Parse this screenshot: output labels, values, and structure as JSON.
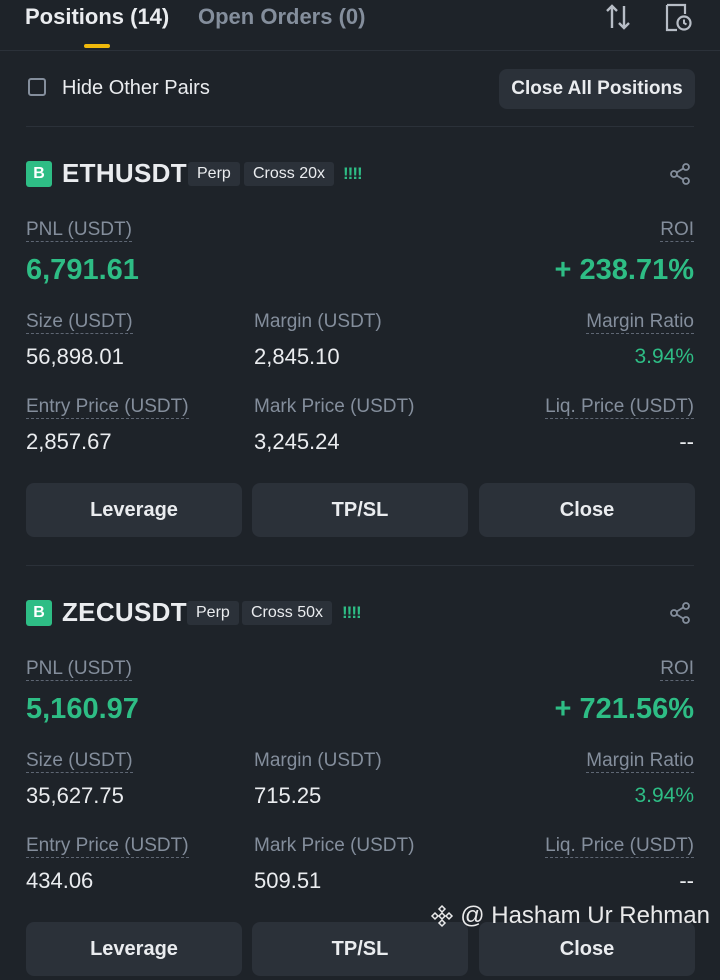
{
  "tabs": [
    {
      "label": "Positions (14)",
      "active": true
    },
    {
      "label": "Open Orders (0)",
      "active": false
    }
  ],
  "toolbar_icons": [
    "sort-icon",
    "history-icon"
  ],
  "filter": {
    "hide_other_pairs_label": "Hide Other Pairs",
    "hide_other_pairs_checked": false,
    "close_all_label": "Close All Positions"
  },
  "positions": [
    {
      "badge": "B",
      "symbol": "ETHUSDT",
      "type_tag": "Perp",
      "margin_tag": "Cross 20x",
      "signal": "!!!!",
      "pnl_label": "PNL (USDT)",
      "pnl_value": "6,791.61",
      "roi_label": "ROI",
      "roi_value": "+ 238.71%",
      "size_label": "Size (USDT)",
      "size_value": "56,898.01",
      "margin_label": "Margin (USDT)",
      "margin_value": "2,845.10",
      "margin_ratio_label": "Margin Ratio",
      "margin_ratio_value": "3.94%",
      "entry_label": "Entry Price (USDT)",
      "entry_value": "2,857.67",
      "mark_label": "Mark Price (USDT)",
      "mark_value": "3,245.24",
      "liq_label": "Liq. Price (USDT)",
      "liq_value": "--",
      "buttons": [
        "Leverage",
        "TP/SL",
        "Close"
      ]
    },
    {
      "badge": "B",
      "symbol": "ZECUSDT",
      "type_tag": "Perp",
      "margin_tag": "Cross 50x",
      "signal": "!!!!",
      "pnl_label": "PNL (USDT)",
      "pnl_value": "5,160.97",
      "roi_label": "ROI",
      "roi_value": "+ 721.56%",
      "size_label": "Size (USDT)",
      "size_value": "35,627.75",
      "margin_label": "Margin (USDT)",
      "margin_value": "715.25",
      "margin_ratio_label": "Margin Ratio",
      "margin_ratio_value": "3.94%",
      "entry_label": "Entry Price (USDT)",
      "entry_value": "434.06",
      "mark_label": "Mark Price (USDT)",
      "mark_value": "509.51",
      "liq_label": "Liq. Price (USDT)",
      "liq_value": "--",
      "buttons": [
        "Leverage",
        "TP/SL",
        "Close"
      ]
    }
  ],
  "watermark": "@ Hasham Ur Rehman",
  "colors": {
    "background": "#1e2329",
    "panel": "#2b3139",
    "profit_green": "#2ebd85",
    "accent_yellow": "#f0b90b",
    "muted_text": "#848e9c"
  }
}
